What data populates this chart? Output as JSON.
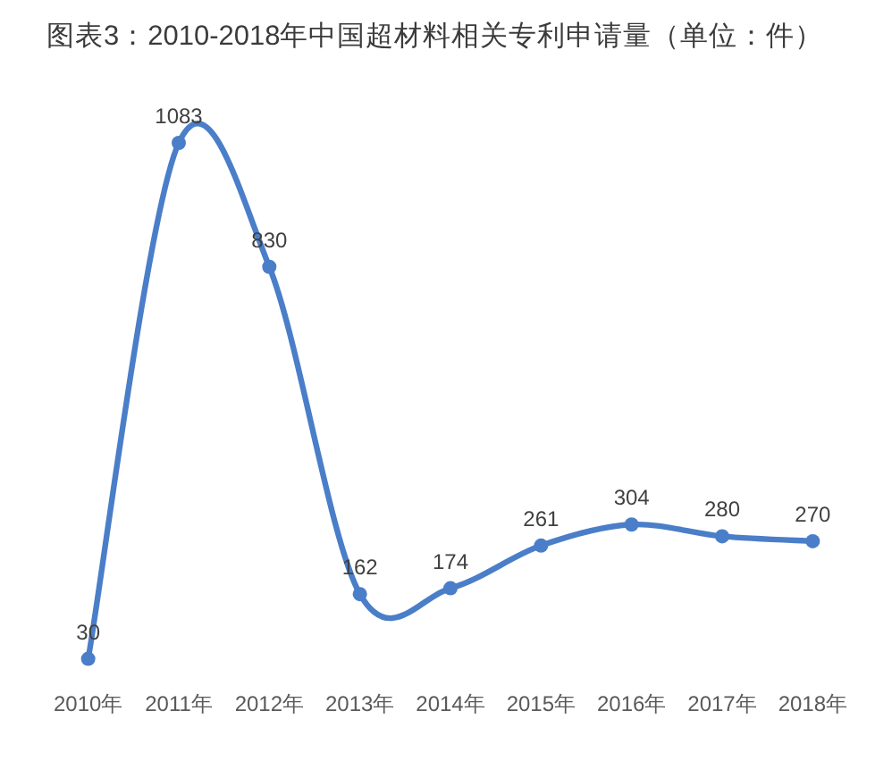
{
  "chart_data": {
    "type": "line",
    "title": "图表3：2010-2018年中国超材料相关专利申请量（单位：件）",
    "categories": [
      "2010年",
      "2011年",
      "2012年",
      "2013年",
      "2014年",
      "2015年",
      "2016年",
      "2017年",
      "2018年"
    ],
    "series": [
      {
        "color": "#4a7ec8",
        "values": [
          30,
          1083,
          830,
          162,
          174,
          261,
          304,
          280,
          270
        ]
      }
    ],
    "data_labels": true,
    "marker": "circle",
    "line_style": "solid"
  }
}
